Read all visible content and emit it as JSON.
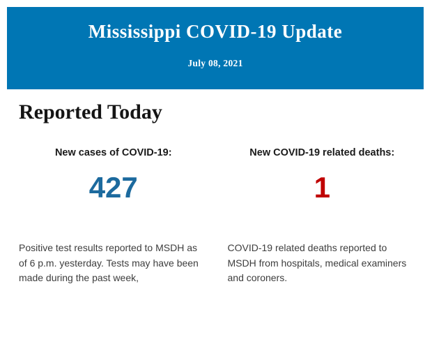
{
  "header": {
    "title": "Mississippi COVID-19 Update",
    "date": "July 08, 2021",
    "background_color": "#0076B4",
    "text_color": "#FFFFFF"
  },
  "section": {
    "heading": "Reported Today"
  },
  "stats": [
    {
      "label": "New cases of COVID-19:",
      "value": "427",
      "value_color": "#1C6A9E",
      "description": "Positive test results reported to MSDH as of 6 p.m. yesterday. Tests may have been made during the past week,"
    },
    {
      "label": "New COVID-19 related deaths:",
      "value": "1",
      "value_color": "#C00000",
      "description": "COVID-19 related deaths reported to MSDH from hospitals, medical examiners and coroners."
    }
  ]
}
